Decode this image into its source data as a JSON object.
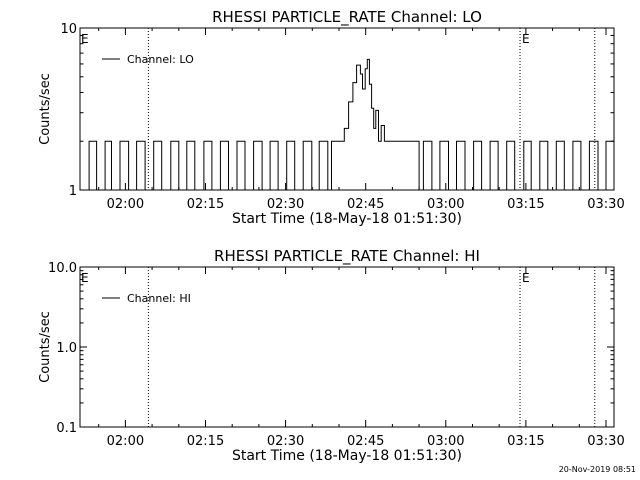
{
  "chart_data": [
    {
      "type": "line",
      "title": "RHESSI PARTICLE_RATE Channel: LO",
      "xlabel": "Start Time (18-May-18 01:51:30)",
      "ylabel": "Counts/sec",
      "y_scale": "log",
      "ylim": [
        1,
        10
      ],
      "y_ticks": [
        {
          "value": 1,
          "label": "1"
        },
        {
          "value": 10,
          "label": "10"
        }
      ],
      "xlim_minutes": [
        111.5,
        211.5
      ],
      "x_ticks": [
        {
          "minute": 120,
          "label": "02:00"
        },
        {
          "minute": 135,
          "label": "02:15"
        },
        {
          "minute": 150,
          "label": "02:30"
        },
        {
          "minute": 165,
          "label": "02:45"
        },
        {
          "minute": 180,
          "label": "03:00"
        },
        {
          "minute": 195,
          "label": "03:15"
        },
        {
          "minute": 210,
          "label": "03:30"
        }
      ],
      "vertical_markers": [
        {
          "minute": 124.3,
          "label": ""
        },
        {
          "minute": 193.9,
          "label": "E"
        },
        {
          "minute": 207.9,
          "label": ""
        }
      ],
      "left_marker_label": "E",
      "legend": "top-left",
      "series": [
        {
          "name": "Channel: LO",
          "x": [
            111.5,
            113.2,
            114.6,
            116.2,
            117.4,
            119.0,
            120.6,
            122.1,
            123.7,
            125.3,
            126.8,
            128.5,
            130.0,
            131.5,
            133.0,
            134.7,
            136.2,
            137.8,
            139.3,
            140.9,
            142.4,
            144.0,
            145.6,
            147.1,
            148.6,
            150.2,
            151.7,
            153.3,
            154.9,
            156.3,
            157.9,
            158.6,
            160.0,
            161.0,
            161.8,
            162.6,
            163.3,
            164.0,
            164.4,
            164.9,
            165.3,
            165.7,
            166.1,
            166.5,
            166.9,
            167.4,
            167.9,
            168.5,
            169.2,
            170.0,
            172.0,
            173.5,
            175.0,
            175.8,
            177.4,
            178.9,
            180.5,
            182.0,
            183.6,
            185.2,
            186.7,
            188.3,
            189.8,
            191.4,
            192.9,
            194.6,
            196.0,
            197.6,
            199.1,
            200.7,
            202.2,
            203.8,
            205.3,
            206.9,
            208.5,
            210.0,
            211.5
          ],
          "y": [
            1,
            2,
            1,
            2,
            1,
            2,
            1,
            2,
            1,
            2,
            1,
            2,
            1,
            2,
            1,
            2,
            1,
            2,
            1,
            2,
            1,
            2,
            1,
            2,
            1,
            2,
            1,
            2,
            1,
            2,
            1,
            2,
            2,
            2.4,
            3.5,
            4.6,
            5.9,
            5.2,
            4.2,
            5.6,
            6.4,
            4.5,
            3.2,
            2.4,
            3.1,
            2.0,
            2.5,
            2.0,
            2.0,
            2.0,
            2.0,
            2,
            1,
            2,
            1,
            2,
            1,
            2,
            1,
            2,
            1,
            2,
            1,
            2,
            1,
            2,
            1,
            2,
            1,
            2,
            1,
            2,
            1,
            2,
            1,
            2,
            1
          ]
        }
      ]
    },
    {
      "type": "line",
      "title": "RHESSI PARTICLE_RATE Channel: HI",
      "xlabel": "Start Time (18-May-18 01:51:30)",
      "ylabel": "Counts/sec",
      "y_scale": "log",
      "ylim": [
        0.1,
        10
      ],
      "y_ticks": [
        {
          "value": 0.1,
          "label": "0.1"
        },
        {
          "value": 1,
          "label": "1.0"
        },
        {
          "value": 10,
          "label": "10.0"
        }
      ],
      "xlim_minutes": [
        111.5,
        211.5
      ],
      "x_ticks": [
        {
          "minute": 120,
          "label": "02:00"
        },
        {
          "minute": 135,
          "label": "02:15"
        },
        {
          "minute": 150,
          "label": "02:30"
        },
        {
          "minute": 165,
          "label": "02:45"
        },
        {
          "minute": 180,
          "label": "03:00"
        },
        {
          "minute": 195,
          "label": "03:15"
        },
        {
          "minute": 210,
          "label": "03:30"
        }
      ],
      "vertical_markers": [
        {
          "minute": 124.3,
          "label": ""
        },
        {
          "minute": 193.9,
          "label": "E"
        },
        {
          "minute": 207.9,
          "label": ""
        }
      ],
      "left_marker_label": "E",
      "legend": "top-left",
      "series": [
        {
          "name": "Channel: HI",
          "x": [],
          "y": []
        }
      ]
    }
  ],
  "footer": {
    "timestamp": "20-Nov-2019 08:51"
  }
}
